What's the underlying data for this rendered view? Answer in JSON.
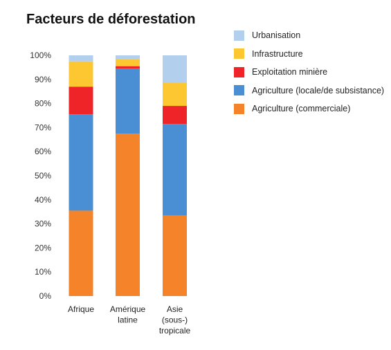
{
  "chart_data": {
    "type": "bar",
    "stacked": true,
    "title": "Facteurs de déforestation",
    "categories": [
      [
        "Afrique"
      ],
      [
        "Amérique",
        "latine"
      ],
      [
        "Asie",
        "(sous-)",
        "tropicale"
      ]
    ],
    "y_ticks": [
      "0%",
      "10%",
      "20%",
      "30%",
      "40%",
      "50%",
      "60%",
      "70%",
      "80%",
      "90%",
      "100%"
    ],
    "ylim": [
      0,
      100
    ],
    "grid": false,
    "legend_position": "right",
    "series": [
      {
        "name": "Agriculture (commerciale)",
        "color": "#f5832a",
        "values": [
          35.5,
          67.5,
          33.5
        ]
      },
      {
        "name": "Agriculture (locale/de subsistance)",
        "color": "#4a8fd4",
        "values": [
          40,
          27,
          38
        ]
      },
      {
        "name": "Exploitation minière",
        "color": "#ee2429",
        "values": [
          11.5,
          1,
          7.5
        ]
      },
      {
        "name": "Infrastructure",
        "color": "#fdc731",
        "values": [
          10.5,
          3,
          9.5
        ]
      },
      {
        "name": "Urbanisation",
        "color": "#b3cfee",
        "values": [
          2.5,
          1.5,
          11.5
        ]
      }
    ]
  }
}
